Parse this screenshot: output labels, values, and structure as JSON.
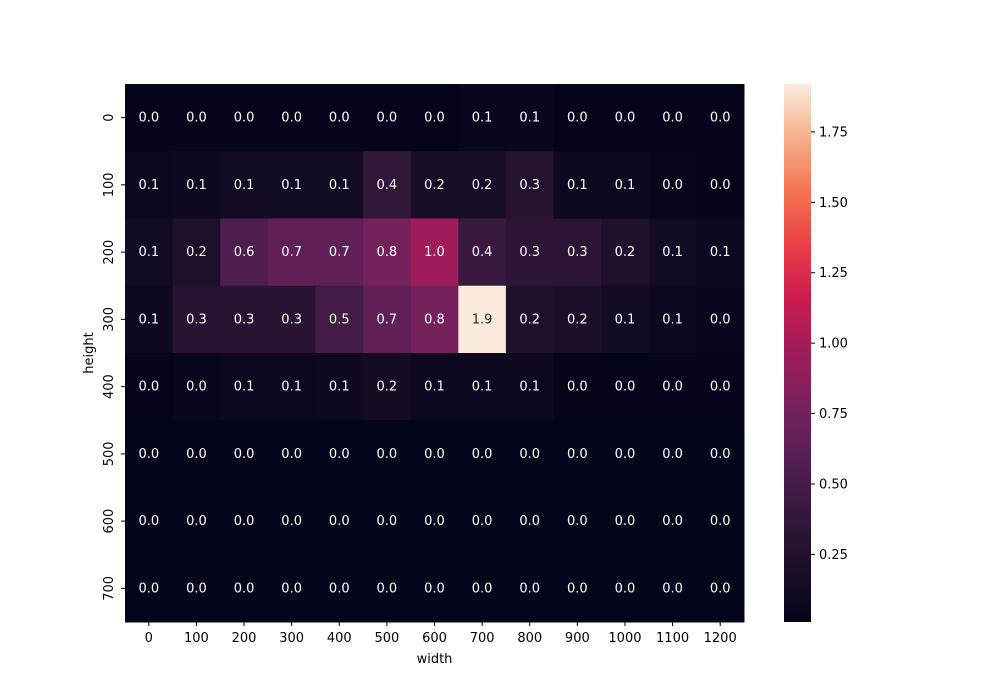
{
  "chart_data": {
    "type": "heatmap",
    "xlabel": "width",
    "ylabel": "height",
    "x_categories": [
      "0",
      "100",
      "200",
      "300",
      "400",
      "500",
      "600",
      "700",
      "800",
      "900",
      "1000",
      "1100",
      "1200"
    ],
    "y_categories": [
      "0",
      "100",
      "200",
      "300",
      "400",
      "500",
      "600",
      "700"
    ],
    "values": [
      [
        0.02,
        0.02,
        0.02,
        0.02,
        0.02,
        0.02,
        0.02,
        0.05,
        0.06,
        0.02,
        0.02,
        0.02,
        0.02
      ],
      [
        0.08,
        0.1,
        0.13,
        0.13,
        0.13,
        0.38,
        0.18,
        0.18,
        0.27,
        0.09,
        0.08,
        0.04,
        0.02
      ],
      [
        0.13,
        0.22,
        0.55,
        0.65,
        0.65,
        0.77,
        0.97,
        0.42,
        0.34,
        0.32,
        0.23,
        0.13,
        0.1
      ],
      [
        0.1,
        0.3,
        0.3,
        0.3,
        0.48,
        0.65,
        0.77,
        1.92,
        0.23,
        0.2,
        0.13,
        0.1,
        0.05
      ],
      [
        0.02,
        0.04,
        0.08,
        0.08,
        0.1,
        0.15,
        0.08,
        0.08,
        0.08,
        0.03,
        0.02,
        0.02,
        0.02
      ],
      [
        0.01,
        0.01,
        0.01,
        0.01,
        0.01,
        0.01,
        0.01,
        0.01,
        0.01,
        0.01,
        0.01,
        0.01,
        0.01
      ],
      [
        0.01,
        0.01,
        0.01,
        0.01,
        0.01,
        0.01,
        0.01,
        0.01,
        0.01,
        0.01,
        0.01,
        0.01,
        0.01
      ],
      [
        0.01,
        0.01,
        0.01,
        0.01,
        0.01,
        0.01,
        0.01,
        0.01,
        0.01,
        0.01,
        0.01,
        0.01,
        0.01
      ]
    ],
    "labels": [
      [
        "0.0",
        "0.0",
        "0.0",
        "0.0",
        "0.0",
        "0.0",
        "0.0",
        "0.1",
        "0.1",
        "0.0",
        "0.0",
        "0.0",
        "0.0"
      ],
      [
        "0.1",
        "0.1",
        "0.1",
        "0.1",
        "0.1",
        "0.4",
        "0.2",
        "0.2",
        "0.3",
        "0.1",
        "0.1",
        "0.0",
        "0.0"
      ],
      [
        "0.1",
        "0.2",
        "0.6",
        "0.7",
        "0.7",
        "0.8",
        "1.0",
        "0.4",
        "0.3",
        "0.3",
        "0.2",
        "0.1",
        "0.1"
      ],
      [
        "0.1",
        "0.3",
        "0.3",
        "0.3",
        "0.5",
        "0.7",
        "0.8",
        "1.9",
        "0.2",
        "0.2",
        "0.1",
        "0.1",
        "0.0"
      ],
      [
        "0.0",
        "0.0",
        "0.1",
        "0.1",
        "0.1",
        "0.2",
        "0.1",
        "0.1",
        "0.1",
        "0.0",
        "0.0",
        "0.0",
        "0.0"
      ],
      [
        "0.0",
        "0.0",
        "0.0",
        "0.0",
        "0.0",
        "0.0",
        "0.0",
        "0.0",
        "0.0",
        "0.0",
        "0.0",
        "0.0",
        "0.0"
      ],
      [
        "0.0",
        "0.0",
        "0.0",
        "0.0",
        "0.0",
        "0.0",
        "0.0",
        "0.0",
        "0.0",
        "0.0",
        "0.0",
        "0.0",
        "0.0"
      ],
      [
        "0.0",
        "0.0",
        "0.0",
        "0.0",
        "0.0",
        "0.0",
        "0.0",
        "0.0",
        "0.0",
        "0.0",
        "0.0",
        "0.0",
        "0.0"
      ]
    ],
    "colorbar": {
      "range": [
        0.01,
        1.92
      ],
      "ticks": [
        0.25,
        0.5,
        0.75,
        1.0,
        1.25,
        1.5,
        1.75
      ],
      "tick_labels": [
        "0.25",
        "0.50",
        "0.75",
        "1.00",
        "1.25",
        "1.50",
        "1.75"
      ],
      "colormap": "rocket"
    },
    "annotation_text_color": "#ffffff",
    "annotation_text_color_light_cell": "#262626",
    "legend": "colorbar-right",
    "grid": false
  }
}
